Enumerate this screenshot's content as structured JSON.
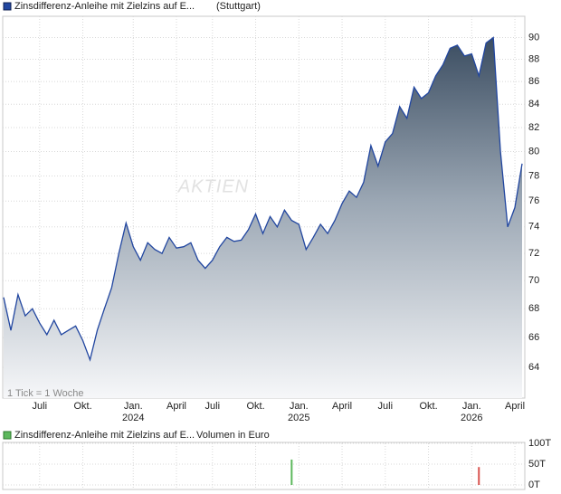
{
  "chart_data": [
    {
      "type": "area",
      "title": "Zinsdifferenz-Anleihe mit Zielzins auf E...",
      "subtitle": "(Stuttgart)",
      "annotation": "1 Tick = 1 Woche",
      "watermark": "AKTIEN",
      "log": true,
      "grid": true,
      "categories": [
        null,
        null,
        null,
        null,
        null,
        "Juli",
        null,
        null,
        null,
        null,
        null,
        "Okt.",
        null,
        null,
        null,
        null,
        null,
        null,
        "Jan.",
        null,
        null,
        null,
        null,
        null,
        "April",
        null,
        null,
        null,
        null,
        "Juli",
        null,
        null,
        null,
        null,
        null,
        "Okt.",
        null,
        null,
        null,
        null,
        null,
        "Jan.",
        null,
        null,
        null,
        null,
        null,
        "April",
        null,
        null,
        null,
        null,
        null,
        "Juli",
        null,
        null,
        null,
        null,
        null,
        "Okt.",
        null,
        null,
        null,
        null,
        null,
        "Jan.",
        null,
        null,
        null,
        null,
        null,
        "April",
        null
      ],
      "years": [
        null,
        null,
        null,
        null,
        null,
        null,
        null,
        null,
        null,
        null,
        null,
        null,
        null,
        null,
        null,
        null,
        null,
        null,
        "2024",
        null,
        null,
        null,
        null,
        null,
        null,
        null,
        null,
        null,
        null,
        null,
        null,
        null,
        null,
        null,
        null,
        null,
        null,
        null,
        null,
        null,
        null,
        "2025",
        null,
        null,
        null,
        null,
        null,
        null,
        null,
        null,
        null,
        null,
        null,
        null,
        null,
        null,
        null,
        null,
        null,
        null,
        null,
        null,
        null,
        null,
        null,
        "2026",
        null,
        null,
        null,
        null,
        null,
        null,
        null
      ],
      "series": [
        {
          "name": "Zinsdifferenz-Anleihe mit Zielzins auf E...",
          "color": "#2146a0",
          "values": [
            68.8,
            66.5,
            69.0,
            67.5,
            68.0,
            67.0,
            66.2,
            67.2,
            66.2,
            66.5,
            66.8,
            65.8,
            64.5,
            66.5,
            68.0,
            69.5,
            72.0,
            74.3,
            72.5,
            71.5,
            72.8,
            72.3,
            72.0,
            73.2,
            72.4,
            72.5,
            72.8,
            71.5,
            70.9,
            71.5,
            72.5,
            73.2,
            72.9,
            73.0,
            73.8,
            75.0,
            73.5,
            74.8,
            74.0,
            75.3,
            74.5,
            74.2,
            72.3,
            73.2,
            74.2,
            73.5,
            74.5,
            75.8,
            76.8,
            76.3,
            77.5,
            80.5,
            78.8,
            80.8,
            81.5,
            83.8,
            82.8,
            85.5,
            84.5,
            85.0,
            86.5,
            87.5,
            89.0,
            89.3,
            88.3,
            88.5,
            86.5,
            89.5,
            90.0,
            80.0,
            74.0,
            75.5,
            79.0
          ]
        }
      ],
      "ylim": [
        62,
        92
      ],
      "yticks": [
        64,
        66,
        68,
        70,
        72,
        74,
        76,
        78,
        80,
        82,
        84,
        86,
        88,
        90
      ]
    },
    {
      "type": "bar",
      "series_name": "Zinsdifferenz-Anleihe mit Zielzins auf E...",
      "label": "Volumen in Euro",
      "legend_color": "#5cb85c",
      "grid": true,
      "values": [
        null,
        null,
        null,
        null,
        null,
        null,
        null,
        null,
        null,
        null,
        null,
        null,
        null,
        null,
        null,
        null,
        null,
        null,
        null,
        null,
        null,
        null,
        null,
        null,
        null,
        null,
        null,
        null,
        null,
        null,
        null,
        null,
        null,
        null,
        null,
        null,
        null,
        null,
        null,
        null,
        61000,
        null,
        null,
        null,
        null,
        null,
        null,
        null,
        null,
        null,
        null,
        null,
        null,
        null,
        null,
        null,
        null,
        null,
        null,
        null,
        null,
        null,
        null,
        null,
        null,
        null,
        43000,
        null,
        null,
        null,
        null,
        null,
        null
      ],
      "colors": [
        null,
        null,
        null,
        null,
        null,
        null,
        null,
        null,
        null,
        null,
        null,
        null,
        null,
        null,
        null,
        null,
        null,
        null,
        null,
        null,
        null,
        null,
        null,
        null,
        null,
        null,
        null,
        null,
        null,
        null,
        null,
        null,
        null,
        null,
        null,
        null,
        null,
        null,
        null,
        null,
        "#5cb85c",
        null,
        null,
        null,
        null,
        null,
        null,
        null,
        null,
        null,
        null,
        null,
        null,
        null,
        null,
        null,
        null,
        null,
        null,
        null,
        null,
        null,
        null,
        null,
        null,
        null,
        "#d9534f",
        null,
        null,
        null,
        null,
        null,
        null
      ],
      "ylim": [
        0,
        100000
      ],
      "yticks": [
        {
          "value": 0,
          "label": "0T"
        },
        {
          "value": 50000,
          "label": "50T"
        },
        {
          "value": 100000,
          "label": "100T"
        }
      ]
    }
  ]
}
